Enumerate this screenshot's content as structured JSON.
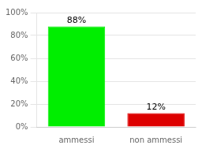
{
  "chart_data": {
    "type": "bar",
    "categories": [
      "ammessi",
      "non ammessi"
    ],
    "values": [
      88,
      12
    ],
    "colors": [
      "#00ee00",
      "#dd0000"
    ],
    "data_labels": true,
    "value_labels": [
      "88%",
      "12%"
    ],
    "ylim": [
      0,
      100
    ],
    "yticks": [
      {
        "value": 0,
        "label": "0%"
      },
      {
        "value": 20,
        "label": "20%"
      },
      {
        "value": 40,
        "label": "40%"
      },
      {
        "value": 60,
        "label": "60%"
      },
      {
        "value": 80,
        "label": "80%"
      },
      {
        "value": 100,
        "label": "100%"
      }
    ],
    "grid": true
  }
}
